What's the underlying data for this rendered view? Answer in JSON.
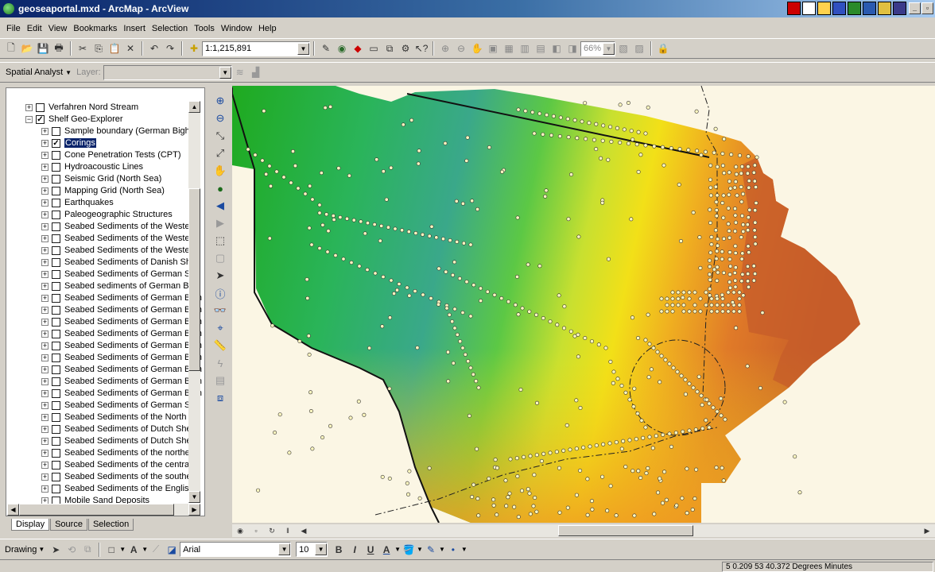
{
  "window": {
    "title": "geoseaportal.mxd - ArcMap - ArcView"
  },
  "menu": [
    "File",
    "Edit",
    "View",
    "Bookmarks",
    "Insert",
    "Selection",
    "Tools",
    "Window",
    "Help"
  ],
  "standard_toolbar": {
    "scale": "1:1,215,891",
    "zoom_percent": "66%"
  },
  "spatial_analyst": {
    "label": "Spatial Analyst",
    "layer_label": "Layer:"
  },
  "toc": {
    "rows": [
      {
        "label": "Verfahren Nord Stream",
        "expanded": false,
        "checked": false,
        "indent": 0
      },
      {
        "label": "Shelf Geo-Explorer",
        "expanded": true,
        "checked": true,
        "indent": 0
      },
      {
        "label": "Sample boundary (German Bight)",
        "expanded": false,
        "checked": false,
        "indent": 1
      },
      {
        "label": "Corings",
        "expanded": false,
        "checked": true,
        "indent": 1,
        "selected": true
      },
      {
        "label": "Cone Penetration Tests (CPT)",
        "expanded": false,
        "checked": false,
        "indent": 1
      },
      {
        "label": "Hydroacoustic Lines",
        "expanded": false,
        "checked": false,
        "indent": 1
      },
      {
        "label": "Seismic Grid (North Sea)",
        "expanded": false,
        "checked": false,
        "indent": 1
      },
      {
        "label": "Mapping Grid (North Sea)",
        "expanded": false,
        "checked": false,
        "indent": 1
      },
      {
        "label": "Earthquakes",
        "expanded": false,
        "checked": false,
        "indent": 1
      },
      {
        "label": "Paleogeographic Structures",
        "expanded": false,
        "checked": false,
        "indent": 1
      },
      {
        "label": "Seabed Sediments of the Westerr",
        "expanded": false,
        "checked": false,
        "indent": 1
      },
      {
        "label": "Seabed Sediments of the Westerr",
        "expanded": false,
        "checked": false,
        "indent": 1
      },
      {
        "label": "Seabed Sediments of the Westerr",
        "expanded": false,
        "checked": false,
        "indent": 1
      },
      {
        "label": "Seabed Sediments of Danish Shelf",
        "expanded": false,
        "checked": false,
        "indent": 1
      },
      {
        "label": "Seabed Sediments of German She",
        "expanded": false,
        "checked": false,
        "indent": 1
      },
      {
        "label": "Seabed sediments of German Bigh",
        "expanded": false,
        "checked": false,
        "indent": 1
      },
      {
        "label": "Seabed Sediments of German Bigh",
        "expanded": false,
        "checked": false,
        "indent": 1
      },
      {
        "label": "Seabed Sediments of German Bigh",
        "expanded": false,
        "checked": false,
        "indent": 1
      },
      {
        "label": "Seabed Sediments of German Bigh",
        "expanded": false,
        "checked": false,
        "indent": 1
      },
      {
        "label": "Seabed Sediments of German Bigh",
        "expanded": false,
        "checked": false,
        "indent": 1
      },
      {
        "label": "Seabed Sediments of German Bigh",
        "expanded": false,
        "checked": false,
        "indent": 1
      },
      {
        "label": "Seabed Sediments of German Bigh",
        "expanded": false,
        "checked": false,
        "indent": 1
      },
      {
        "label": "Seabed Sediments of German Bigh",
        "expanded": false,
        "checked": false,
        "indent": 1
      },
      {
        "label": "Seabed Sediments of German Bigh",
        "expanded": false,
        "checked": false,
        "indent": 1
      },
      {
        "label": "Seabed Sediments of German Bigh",
        "expanded": false,
        "checked": false,
        "indent": 1
      },
      {
        "label": "Seabed Sediments of German She",
        "expanded": false,
        "checked": false,
        "indent": 1
      },
      {
        "label": "Seabed Sediments of the North Se",
        "expanded": false,
        "checked": false,
        "indent": 1
      },
      {
        "label": "Seabed Sediments of Dutch Shelf",
        "expanded": false,
        "checked": false,
        "indent": 1
      },
      {
        "label": "Seabed Sediments of Dutch Shelf",
        "expanded": false,
        "checked": false,
        "indent": 1
      },
      {
        "label": "Seabed Sediments of the northerr",
        "expanded": false,
        "checked": false,
        "indent": 1
      },
      {
        "label": "Seabed Sediments of the central l",
        "expanded": false,
        "checked": false,
        "indent": 1
      },
      {
        "label": "Seabed Sediments of the southerr",
        "expanded": false,
        "checked": false,
        "indent": 1
      },
      {
        "label": "Seabed Sediments of the English (",
        "expanded": false,
        "checked": false,
        "indent": 1
      },
      {
        "label": "Mobile Sand Deposits",
        "expanded": false,
        "checked": false,
        "indent": 1
      }
    ],
    "tabs": [
      "Display",
      "Source",
      "Selection"
    ]
  },
  "drawing_toolbar": {
    "label": "Drawing",
    "font": "Arial",
    "font_size": "10",
    "bold": "B",
    "italic": "I",
    "underline": "U",
    "text_tool": "A"
  },
  "status": {
    "coordinates": "5 0.209  53 40.372 Degrees Minutes"
  }
}
